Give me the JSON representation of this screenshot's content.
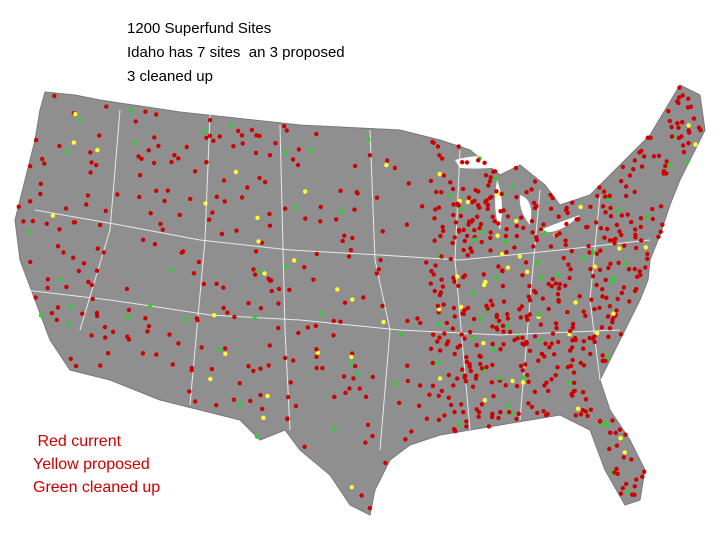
{
  "title": {
    "lines": [
      "1200 Superfund Sites",
      "Idaho has 7 sites  an 3 proposed",
      "3 cleaned up"
    ]
  },
  "legend": {
    "lines": [
      " Red current",
      "Yellow proposed",
      "Green cleaned up"
    ]
  }
}
